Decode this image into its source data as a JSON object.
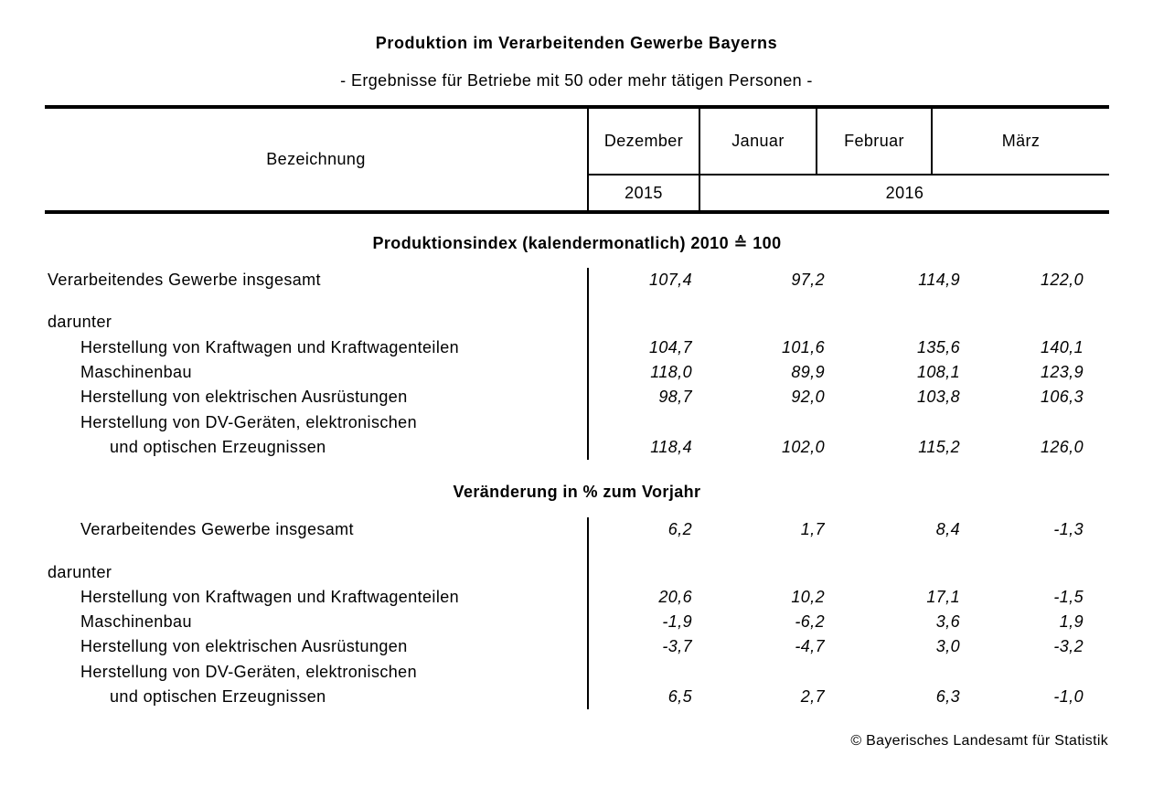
{
  "page": {
    "title": "Produktion im Verarbeitenden Gewerbe Bayerns",
    "subtitle": "- Ergebnisse für Betriebe mit 50 oder mehr tätigen Personen -",
    "footer": "© Bayerisches Landesamt für Statistik"
  },
  "colors": {
    "text": "#000000",
    "background": "#ffffff",
    "rules": "#000000"
  },
  "table": {
    "header": {
      "label_column": "Bezeichnung",
      "months": [
        "Dezember",
        "Januar",
        "Februar",
        "März"
      ],
      "years": [
        "2015",
        "2016"
      ]
    },
    "sections": [
      {
        "heading": "Produktionsindex (kalendermonatlich) 2010 ≙ 100",
        "rows": [
          {
            "label": "Verarbeitendes Gewerbe insgesamt",
            "indent": 0,
            "gap_before": false,
            "values": [
              "107,4",
              "97,2",
              "114,9",
              "122,0"
            ]
          },
          {
            "label": "darunter",
            "indent": 0,
            "gap_before": true,
            "values": null
          },
          {
            "label": "Herstellung von Kraftwagen und Kraftwagenteilen",
            "indent": 1,
            "gap_before": false,
            "values": [
              "104,7",
              "101,6",
              "135,6",
              "140,1"
            ]
          },
          {
            "label": "Maschinenbau",
            "indent": 1,
            "gap_before": false,
            "values": [
              "118,0",
              "89,9",
              "108,1",
              "123,9"
            ]
          },
          {
            "label": "Herstellung von elektrischen Ausrüstungen",
            "indent": 1,
            "gap_before": false,
            "values": [
              "98,7",
              "92,0",
              "103,8",
              "106,3"
            ]
          },
          {
            "label": "Herstellung von DV-Geräten, elektronischen",
            "indent": 1,
            "gap_before": false,
            "values": null
          },
          {
            "label": "und optischen Erzeugnissen",
            "indent": 2,
            "gap_before": false,
            "values": [
              "118,4",
              "102,0",
              "115,2",
              "126,0"
            ]
          }
        ]
      },
      {
        "heading": "Veränderung in % zum Vorjahr",
        "rows": [
          {
            "label": "Verarbeitendes Gewerbe insgesamt",
            "indent": 1,
            "gap_before": false,
            "values": [
              "6,2",
              "1,7",
              "8,4",
              "-1,3"
            ]
          },
          {
            "label": "darunter",
            "indent": 0,
            "gap_before": true,
            "values": null
          },
          {
            "label": "Herstellung von Kraftwagen und Kraftwagenteilen",
            "indent": 1,
            "gap_before": false,
            "values": [
              "20,6",
              "10,2",
              "17,1",
              "-1,5"
            ]
          },
          {
            "label": "Maschinenbau",
            "indent": 1,
            "gap_before": false,
            "values": [
              "-1,9",
              "-6,2",
              "3,6",
              "1,9"
            ]
          },
          {
            "label": "Herstellung von elektrischen Ausrüstungen",
            "indent": 1,
            "gap_before": false,
            "values": [
              "-3,7",
              "-4,7",
              "3,0",
              "-3,2"
            ]
          },
          {
            "label": "Herstellung von DV-Geräten, elektronischen",
            "indent": 1,
            "gap_before": false,
            "values": null
          },
          {
            "label": "und optischen Erzeugnissen",
            "indent": 2,
            "gap_before": false,
            "values": [
              "6,5",
              "2,7",
              "6,3",
              "-1,0"
            ]
          }
        ]
      }
    ]
  }
}
